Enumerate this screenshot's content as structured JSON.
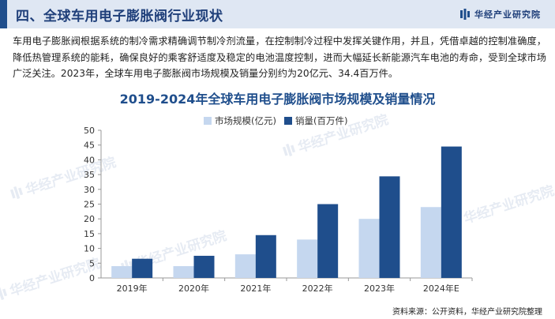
{
  "header": {
    "title": "四、全球车用电子膨胀阀行业现状",
    "brand": "华经产业研究院"
  },
  "description": "车用电子膨胀阀根据系统的制冷需求精确调节制冷剂流量，在控制制冷过程中发挥关键作用，并且，凭借卓越的控制准确度，降低热管理系统的能耗，确保良好的乘客舒适度及稳定的电池温度控制，进而大幅延长新能源汽车电池的寿命，受到全球市场广泛关注。2023年，全球车用电子膨胀阀市场规模及销量分别约为20亿元、34.4百万件。",
  "watermark": {
    "text": "华经产业研究院"
  },
  "source": "资料来源：公开资料，华经产业研究院整理",
  "colors": {
    "header_bg": "#dfe7f3",
    "accent": "#1f4e8c",
    "series_light": "#c5d7ef",
    "series_dark": "#1f4e8c"
  },
  "chart_data": {
    "type": "bar",
    "title": "2019-2024年全球车用电子膨胀阀市场规模及销量情况",
    "categories": [
      "2019年",
      "2020年",
      "2021年",
      "2022年",
      "2023年",
      "2024年E"
    ],
    "series": [
      {
        "name": "市场规模(亿元)",
        "color": "#c5d7ef",
        "values": [
          4,
          4,
          8,
          13,
          20,
          24
        ]
      },
      {
        "name": "销量(百万件)",
        "color": "#1f4e8c",
        "values": [
          6.5,
          7.5,
          14.5,
          25,
          34.4,
          44.5
        ]
      }
    ],
    "ylim": [
      0,
      50
    ],
    "yticks": [
      0,
      5,
      10,
      15,
      20,
      25,
      30,
      35,
      40,
      45,
      50
    ],
    "legend_position": "top-center",
    "grid": false
  }
}
